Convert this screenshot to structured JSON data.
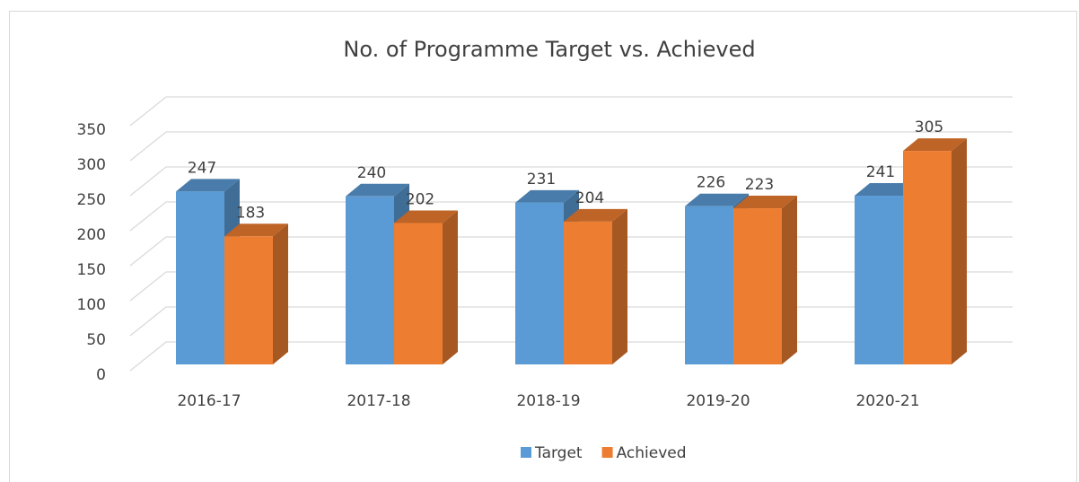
{
  "chart_data": {
    "type": "bar3d",
    "title": "No. of Programme Target vs. Achieved",
    "categories": [
      "2016-17",
      "2017-18",
      "2018-19",
      "2019-20",
      "2020-21"
    ],
    "series": [
      {
        "name": "Target",
        "color": "#5b9bd5",
        "values": [
          247,
          240,
          231,
          226,
          241
        ]
      },
      {
        "name": "Achieved",
        "color": "#ed7d31",
        "values": [
          183,
          202,
          204,
          223,
          305
        ]
      }
    ],
    "ylim": [
      0,
      350
    ],
    "yticks": [
      0,
      50,
      100,
      150,
      200,
      250,
      300,
      350
    ],
    "grid": true,
    "legend": "bottom"
  }
}
